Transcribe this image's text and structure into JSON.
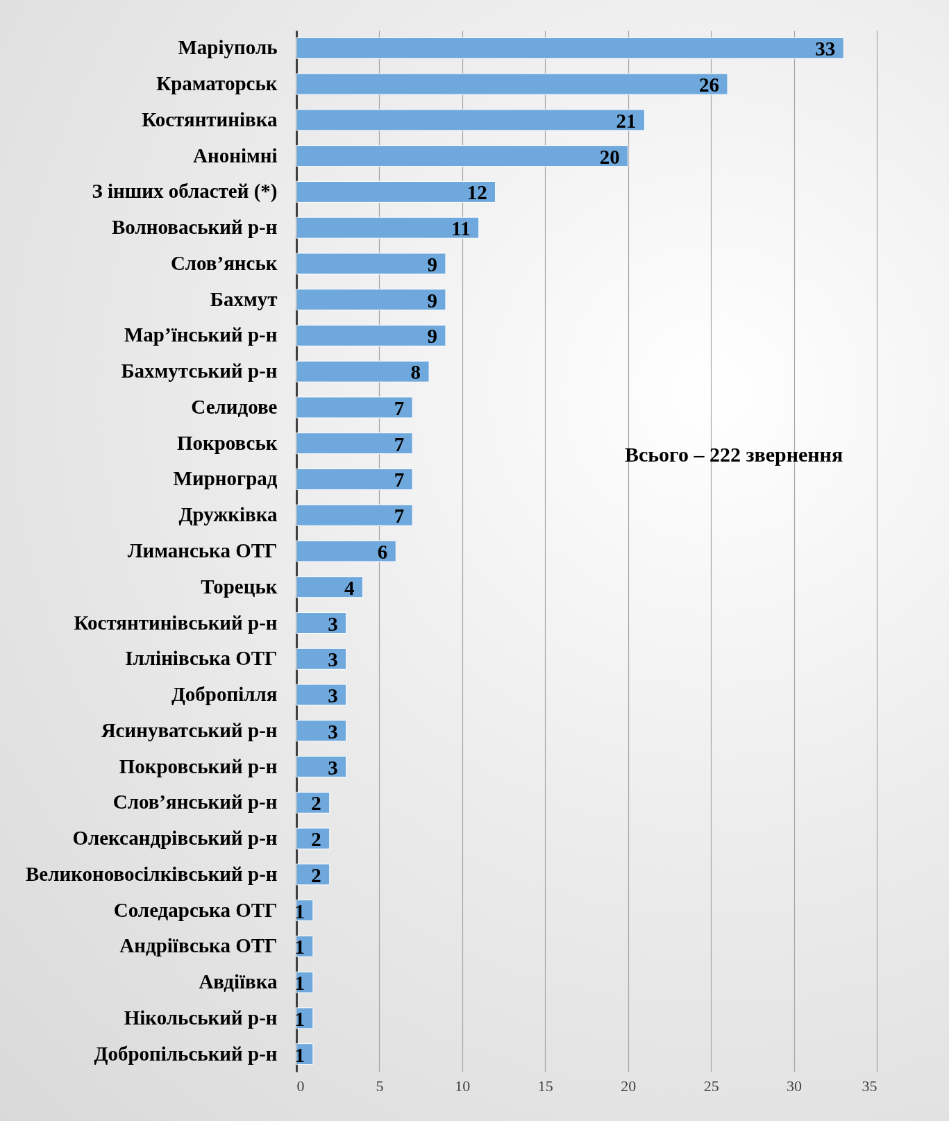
{
  "chart_data": {
    "type": "bar",
    "orientation": "horizontal",
    "categories": [
      "Маріуполь",
      "Краматорськ",
      "Костянтинівка",
      "Анонімні",
      "З інших областей (*)",
      "Волноваський р-н",
      "Слов’янськ",
      "Бахмут",
      "Мар’їнський р-н",
      "Бахмутський р-н",
      "Селидове",
      "Покровськ",
      "Мирноград",
      "Дружківка",
      "Лиманська ОТГ",
      "Торецьк",
      "Костянтинівський р-н",
      "Іллінівська ОТГ",
      "Добропілля",
      "Ясинуватський р-н",
      "Покровський р-н",
      "Слов’янський р-н",
      "Олександрівський р-н",
      "Великоновосілківський р-н",
      "Соледарська ОТГ",
      "Андріївська ОТГ",
      "Авдіївка",
      "Нікольський р-н",
      "Добропільський р-н"
    ],
    "values": [
      33,
      26,
      21,
      20,
      12,
      11,
      9,
      9,
      9,
      8,
      7,
      7,
      7,
      7,
      6,
      4,
      3,
      3,
      3,
      3,
      3,
      2,
      2,
      2,
      1,
      1,
      1,
      1,
      1
    ],
    "color": "#6fa8dc",
    "xlim": [
      0,
      35
    ],
    "xticks": [
      0,
      5,
      10,
      15,
      20,
      25,
      30,
      35
    ],
    "grid": "x",
    "data_labels": true,
    "annotations": [
      "Всього – 222 звернення"
    ]
  }
}
